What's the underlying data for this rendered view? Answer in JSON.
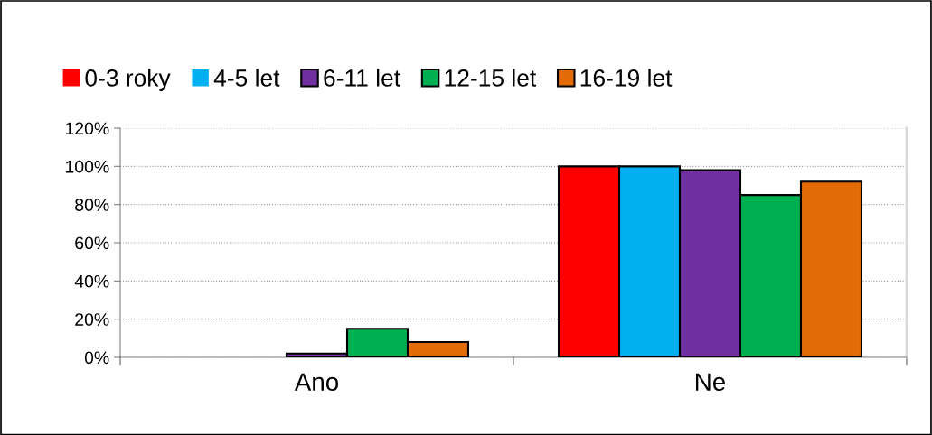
{
  "chart_data": {
    "type": "bar",
    "categories": [
      "Ano",
      "Ne"
    ],
    "series": [
      {
        "name": "0-3 roky",
        "color": "#ff0000",
        "values": [
          0,
          100
        ]
      },
      {
        "name": "4-5 let",
        "color": "#00b0f0",
        "values": [
          0,
          100
        ]
      },
      {
        "name": "6-11 let",
        "color": "#7030a0",
        "values": [
          2,
          98
        ]
      },
      {
        "name": "12-15 let",
        "color": "#00b050",
        "values": [
          15,
          85
        ]
      },
      {
        "name": "16-19 let",
        "color": "#e36c09",
        "values": [
          8,
          92
        ]
      }
    ],
    "ylim": [
      0,
      120
    ],
    "yticks": [
      {
        "value": 0,
        "label": "0%"
      },
      {
        "value": 20,
        "label": "20%"
      },
      {
        "value": 40,
        "label": "40%"
      },
      {
        "value": 60,
        "label": "60%"
      },
      {
        "value": 80,
        "label": "80%"
      },
      {
        "value": 100,
        "label": "100%"
      },
      {
        "value": 120,
        "label": "120%"
      }
    ],
    "grid": "y",
    "legend": "top"
  }
}
